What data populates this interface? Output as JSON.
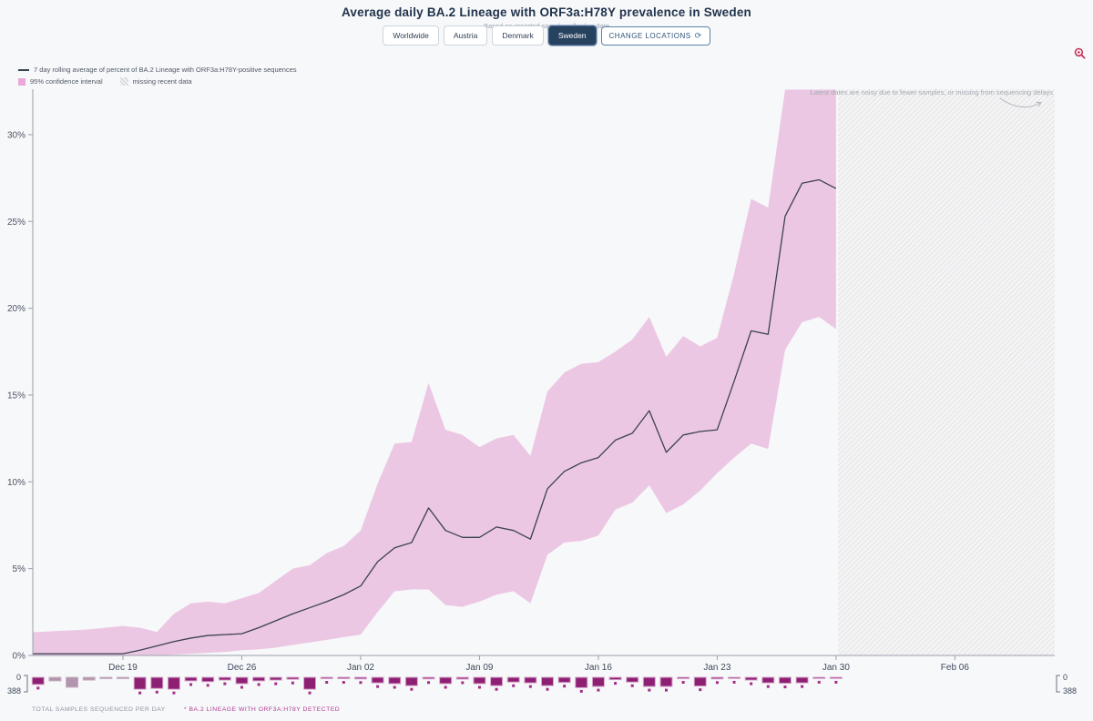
{
  "header": {
    "title": "Average daily BA.2 Lineage with ORF3a:H78Y prevalence in Sweden",
    "subtitle": "Based on reported sample collection date",
    "location_buttons": [
      "Worldwide",
      "Austria",
      "Denmark",
      "Sweden"
    ],
    "selected_location": "Sweden",
    "change_locations_label": "CHANGE LOCATIONS"
  },
  "legend": {
    "line_label": "7 day rolling average of percent of BA.2 Lineage with ORF3a:H78Y-positive sequences",
    "band_label": "95% confidence interval",
    "missing_label": "missing recent data"
  },
  "colors": {
    "band": "#ecc7e3",
    "line": "#3a4252",
    "bar": "#8e2074",
    "bar_border": "#d9a6cc",
    "bar_no_detect": "#b194ad",
    "bar_no_detect_border": "#c7b2c2",
    "dot": "#a22c87",
    "selected_button": "#27425f",
    "zoom_icon": "#c9315b"
  },
  "footer": {
    "total_samples_label": "TOTAL SAMPLES SEQUENCED PER DAY",
    "detected_label": "* BA.2 LINEAGE WITH ORF3A:H78Y DETECTED"
  },
  "chart_data": {
    "type": "line",
    "title": "Average daily BA.2 Lineage with ORF3a:H78Y prevalence in Sweden",
    "ylabel": "percent of sequences",
    "ylim": [
      0,
      32.6
    ],
    "grid": false,
    "legend_position": "top-left",
    "dates": [
      "Dec 14",
      "Dec 15",
      "Dec 16",
      "Dec 17",
      "Dec 18",
      "Dec 19",
      "Dec 20",
      "Dec 21",
      "Dec 22",
      "Dec 23",
      "Dec 24",
      "Dec 25",
      "Dec 26",
      "Dec 27",
      "Dec 28",
      "Dec 29",
      "Dec 30",
      "Dec 31",
      "Jan 01",
      "Jan 02",
      "Jan 03",
      "Jan 04",
      "Jan 05",
      "Jan 06",
      "Jan 07",
      "Jan 08",
      "Jan 09",
      "Jan 10",
      "Jan 11",
      "Jan 12",
      "Jan 13",
      "Jan 14",
      "Jan 15",
      "Jan 16",
      "Jan 17",
      "Jan 18",
      "Jan 19",
      "Jan 20",
      "Jan 21",
      "Jan 22",
      "Jan 23",
      "Jan 24",
      "Jan 25",
      "Jan 26",
      "Jan 27",
      "Jan 28",
      "Jan 29",
      "Jan 30"
    ],
    "prevalence_pct": {
      "mean": [
        0.1,
        0.1,
        0.1,
        0.1,
        0.1,
        0.1,
        0.3,
        0.55,
        0.8,
        1.0,
        1.15,
        1.2,
        1.25,
        1.6,
        2.0,
        2.4,
        2.75,
        3.1,
        3.5,
        4.0,
        5.4,
        6.2,
        6.5,
        8.5,
        7.2,
        6.8,
        6.8,
        7.4,
        7.2,
        6.7,
        9.6,
        10.6,
        11.1,
        11.4,
        12.4,
        12.8,
        14.1,
        11.7,
        12.7,
        12.9,
        13.0,
        15.8,
        18.7,
        18.5,
        25.3,
        27.2,
        27.4,
        26.9
      ],
      "ci_lower": [
        0,
        0,
        0,
        0,
        0,
        0,
        0,
        0,
        0.05,
        0.1,
        0.15,
        0.2,
        0.3,
        0.35,
        0.45,
        0.6,
        0.75,
        0.9,
        1.05,
        1.2,
        2.5,
        3.7,
        3.8,
        3.8,
        2.9,
        2.8,
        3.1,
        3.5,
        3.7,
        3.0,
        5.8,
        6.5,
        6.6,
        6.9,
        8.4,
        8.8,
        9.8,
        8.2,
        8.7,
        9.5,
        10.5,
        11.4,
        12.2,
        11.9,
        17.6,
        19.2,
        19.5,
        18.8
      ],
      "ci_upper": [
        1.35,
        1.4,
        1.45,
        1.5,
        1.6,
        1.7,
        1.6,
        1.35,
        2.4,
        3.0,
        3.1,
        3.0,
        3.3,
        3.6,
        4.3,
        5.0,
        5.2,
        5.9,
        6.3,
        7.2,
        9.9,
        12.2,
        12.3,
        15.7,
        13.0,
        12.7,
        12.0,
        12.5,
        12.7,
        11.5,
        15.2,
        16.3,
        16.8,
        16.9,
        17.5,
        18.2,
        19.5,
        17.2,
        18.4,
        17.8,
        18.3,
        22.0,
        26.3,
        25.8,
        32.6,
        32.6,
        32.6,
        32.6
      ]
    },
    "samples": {
      "per_day": [
        180,
        90,
        250,
        70,
        35,
        35,
        300,
        280,
        300,
        90,
        110,
        70,
        160,
        90,
        70,
        50,
        300,
        35,
        35,
        40,
        140,
        160,
        210,
        40,
        160,
        45,
        160,
        210,
        120,
        140,
        210,
        130,
        260,
        230,
        60,
        120,
        230,
        230,
        35,
        220,
        40,
        30,
        70,
        140,
        150,
        140,
        30,
        25
      ],
      "detected": [
        true,
        false,
        false,
        false,
        false,
        false,
        true,
        true,
        true,
        true,
        true,
        true,
        true,
        true,
        true,
        true,
        true,
        true,
        true,
        true,
        true,
        true,
        true,
        true,
        true,
        true,
        true,
        true,
        true,
        true,
        true,
        true,
        true,
        true,
        true,
        true,
        true,
        true,
        true,
        true,
        true,
        true,
        true,
        true,
        true,
        true,
        true,
        true
      ],
      "axis_max": 388,
      "axis_min_label": "0",
      "axis_max_label": "388"
    },
    "y_ticks": {
      "values": [
        0,
        5,
        10,
        15,
        20,
        25,
        30
      ],
      "labels": [
        "0%",
        "5%",
        "10%",
        "15%",
        "20%",
        "25%",
        "30%"
      ]
    },
    "x_ticks": {
      "labels": [
        "Dec 19",
        "Dec 26",
        "Jan 02",
        "Jan 09",
        "Jan 16",
        "Jan 23",
        "Jan 30",
        "Feb 06"
      ]
    },
    "missing_data_region": {
      "starts_after": "Jan 30",
      "note": "Latest dates are noisy due to fewer samples, or missing from sequencing delays"
    }
  }
}
